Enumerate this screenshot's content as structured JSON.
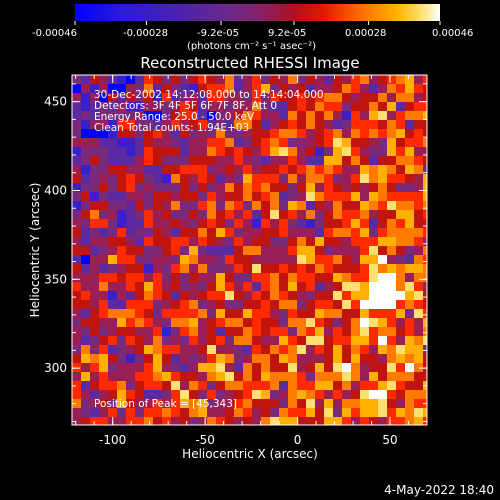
{
  "colors": {
    "background": "#000000",
    "text": "#ffffff",
    "colormap": [
      "#0000ff",
      "#3a20c8",
      "#5b2aa0",
      "#7a2a7a",
      "#9a1f55",
      "#c0150f",
      "#ff2a00",
      "#ff7a00",
      "#ffb000",
      "#ffe070",
      "#ffffff"
    ]
  },
  "colorbar": {
    "tick_labels": [
      "-0.00046",
      "-0.00028",
      "-9.2e-05",
      "9.2e-05",
      "0.00028",
      "0.00046"
    ],
    "units": "(photons cm⁻² s⁻¹ asec⁻²)",
    "range": [
      -0.00046,
      0.00046
    ]
  },
  "chart_data": {
    "type": "heatmap",
    "title": "Reconstructed RHESSI Image",
    "xlabel": "Heliocentric X (arcsec)",
    "ylabel": "Heliocentric Y (arcsec)",
    "xlim": [
      -122,
      70
    ],
    "ylim": [
      268,
      465
    ],
    "x_ticks": [
      -100,
      -50,
      0,
      50
    ],
    "y_ticks": [
      300,
      350,
      400,
      450
    ],
    "annotations": [
      "30-Dec-2002 14:12:08.000 to 14:14:04.000",
      "Detectors: 3F 4F 5F 6F 7F 8F, Att 0",
      "Energy Range: 25.0 - 50.0 keV",
      "Clean     Total counts: 1.94E+03"
    ],
    "peak_label": "Position of Peak = [45,343]",
    "peak": [
      45,
      343
    ]
  },
  "footer": {
    "timestamp": "4-May-2022 18:40"
  }
}
